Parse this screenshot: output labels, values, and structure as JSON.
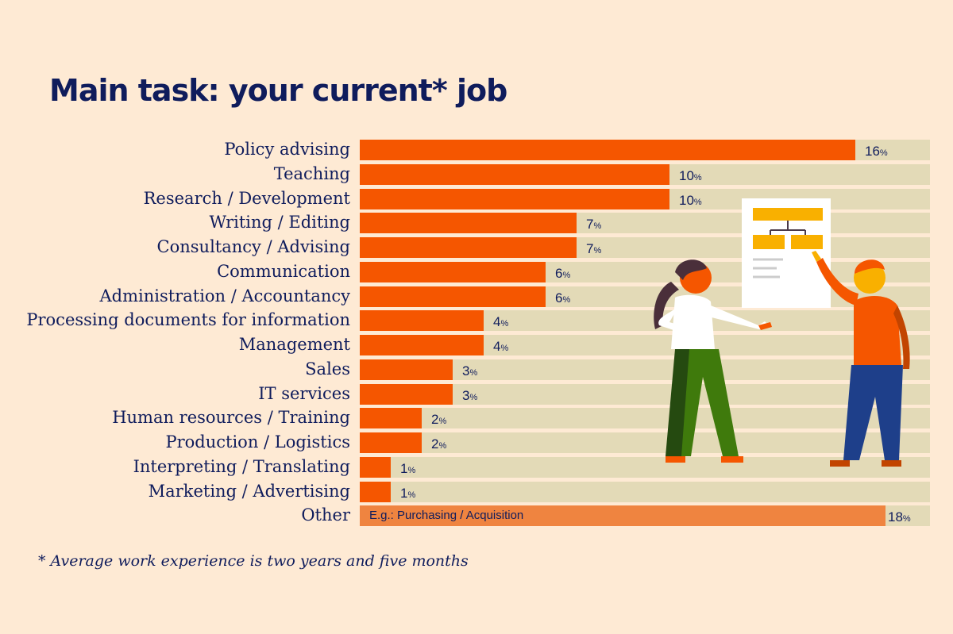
{
  "title": "Main task: your current* job",
  "footnote": "* Average work experience is two years and five months",
  "colors": {
    "bar": "#f55600",
    "other_bar": "#ef8440",
    "track": "#e3dab7",
    "background": "#feead4",
    "text": "#0f1c5c"
  },
  "chart_data": {
    "type": "bar",
    "orientation": "horizontal",
    "title": "Main task: your current* job",
    "unit": "%",
    "categories": [
      "Policy advising",
      "Teaching",
      "Research / Development",
      "Writing / Editing",
      "Consultancy / Advising",
      "Communication",
      "Administration / Accountancy",
      "Processing documents for information",
      "Management",
      "Sales",
      "IT services",
      "Human resources / Training",
      "Production / Logistics",
      "Interpreting / Translating",
      "Marketing / Advertising",
      "Other"
    ],
    "values": [
      16,
      10,
      10,
      7,
      7,
      6,
      6,
      4,
      4,
      3,
      3,
      2,
      2,
      1,
      1,
      18
    ],
    "annotations": {
      "Other": "E.g.: Purchasing / Acquisition"
    }
  }
}
